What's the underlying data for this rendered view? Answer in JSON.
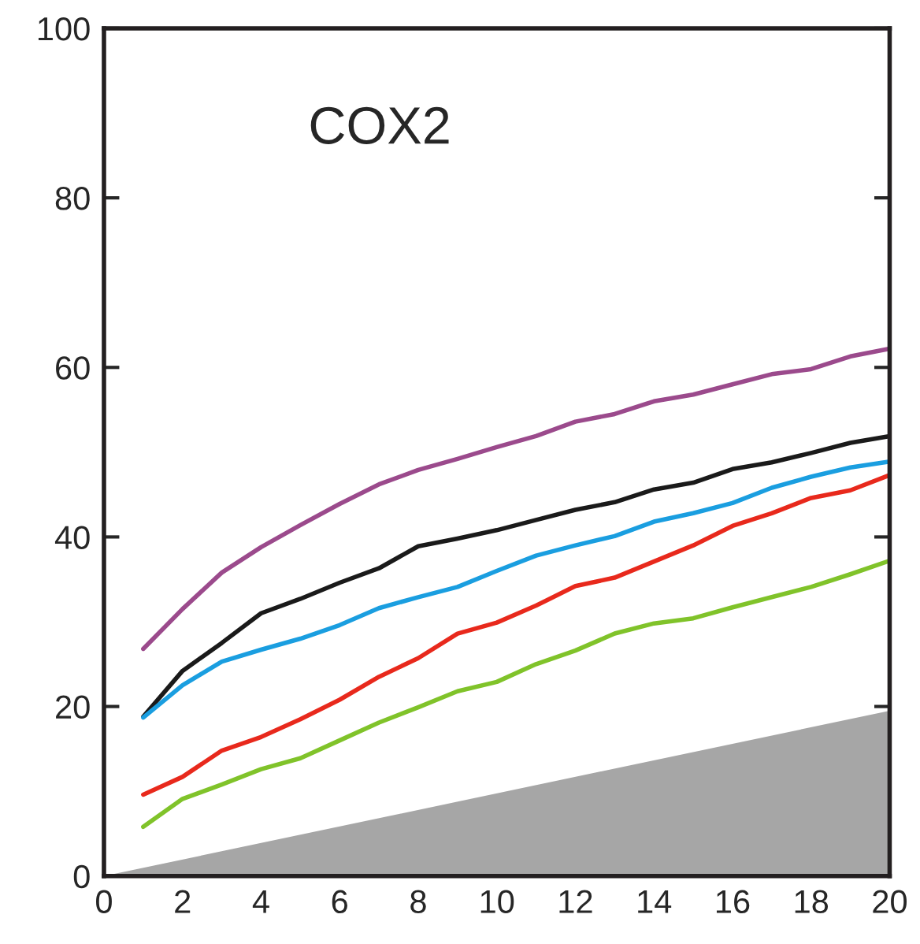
{
  "chart_data": {
    "type": "line",
    "title": "COX2",
    "x": [
      1,
      2,
      3,
      4,
      5,
      6,
      7,
      8,
      9,
      10,
      11,
      12,
      13,
      14,
      15,
      16,
      17,
      18,
      19,
      20
    ],
    "series": [
      {
        "type": "area",
        "color": "#a6a6a6",
        "x": [
          0,
          20
        ],
        "values": [
          0,
          19.5
        ]
      },
      {
        "color": "#9b4a8c",
        "values": [
          26.8,
          31.5,
          35.8,
          38.8,
          41.4,
          43.9,
          46.2,
          47.9,
          49.2,
          50.6,
          51.9,
          53.6,
          54.5,
          56.0,
          56.8,
          58.0,
          59.2,
          59.8,
          61.3,
          62.2
        ]
      },
      {
        "color": "#1a1a1a",
        "values": [
          18.8,
          24.2,
          27.5,
          31.0,
          32.7,
          34.6,
          36.3,
          38.9,
          39.8,
          40.8,
          42.0,
          43.2,
          44.1,
          45.6,
          46.4,
          48.0,
          48.8,
          49.9,
          51.1,
          51.9
        ]
      },
      {
        "color": "#1a9ee0",
        "values": [
          18.7,
          22.5,
          25.3,
          26.7,
          28.0,
          29.6,
          31.6,
          32.9,
          34.1,
          36.0,
          37.8,
          39.0,
          40.1,
          41.8,
          42.8,
          44.0,
          45.8,
          47.1,
          48.2,
          48.9
        ]
      },
      {
        "color": "#e8291c",
        "values": [
          9.6,
          11.7,
          14.8,
          16.4,
          18.5,
          20.8,
          23.5,
          25.7,
          28.6,
          29.9,
          31.9,
          34.2,
          35.2,
          37.1,
          39.0,
          41.3,
          42.8,
          44.6,
          45.5,
          47.3
        ]
      },
      {
        "color": "#80c32a",
        "values": [
          5.8,
          9.1,
          10.8,
          12.6,
          13.9,
          16.0,
          18.1,
          19.9,
          21.8,
          22.9,
          25.0,
          26.6,
          28.6,
          29.8,
          30.4,
          31.7,
          32.9,
          34.1,
          35.6,
          37.2
        ]
      }
    ],
    "xlim": [
      0,
      20
    ],
    "xticks": [
      0,
      2,
      4,
      6,
      8,
      10,
      12,
      14,
      16,
      18,
      20
    ],
    "ylim": [
      0,
      100
    ],
    "yticks": [
      0,
      20,
      40,
      60,
      80,
      100
    ],
    "grid": false,
    "marker": "none",
    "line_style": "solid"
  }
}
